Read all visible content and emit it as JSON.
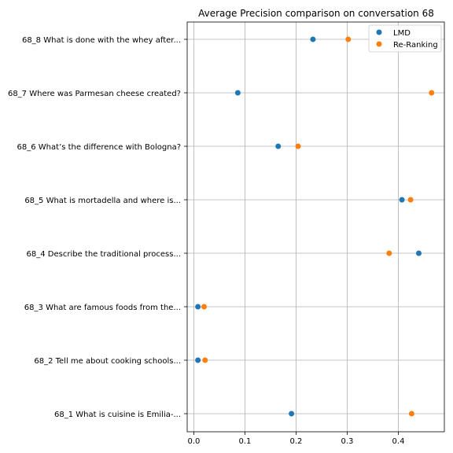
{
  "chart_data": {
    "type": "scatter",
    "title": "Average Precision comparison on conversation 68",
    "xlabel": "",
    "ylabel": "",
    "xlim": [
      -0.013,
      0.49
    ],
    "x_ticks": [
      0.0,
      0.1,
      0.2,
      0.3,
      0.4
    ],
    "x_tick_labels": [
      "0.0",
      "0.1",
      "0.2",
      "0.3",
      "0.4"
    ],
    "categories": [
      "68_8 What is done with the whey after...",
      "68_7 Where was Parmesan cheese created?",
      "68_6 What’s the difference with Bologna?",
      "68_5 What is mortadella and where is...",
      "68_4 Describe the traditional process...",
      "68_3 What are famous foods from the...",
      "68_2 Tell me about cooking schools...",
      "68_1 What is cuisine is Emilia-..."
    ],
    "grid": true,
    "legend_position": "top-right",
    "series": [
      {
        "name": "LMD",
        "color": "#1f77b4",
        "values": [
          0.233,
          0.086,
          0.165,
          0.407,
          0.44,
          0.008,
          0.008,
          0.191
        ]
      },
      {
        "name": "Re-Ranking",
        "color": "#ff7f0e",
        "values": [
          0.302,
          0.465,
          0.204,
          0.424,
          0.382,
          0.02,
          0.022,
          0.426
        ]
      }
    ]
  }
}
